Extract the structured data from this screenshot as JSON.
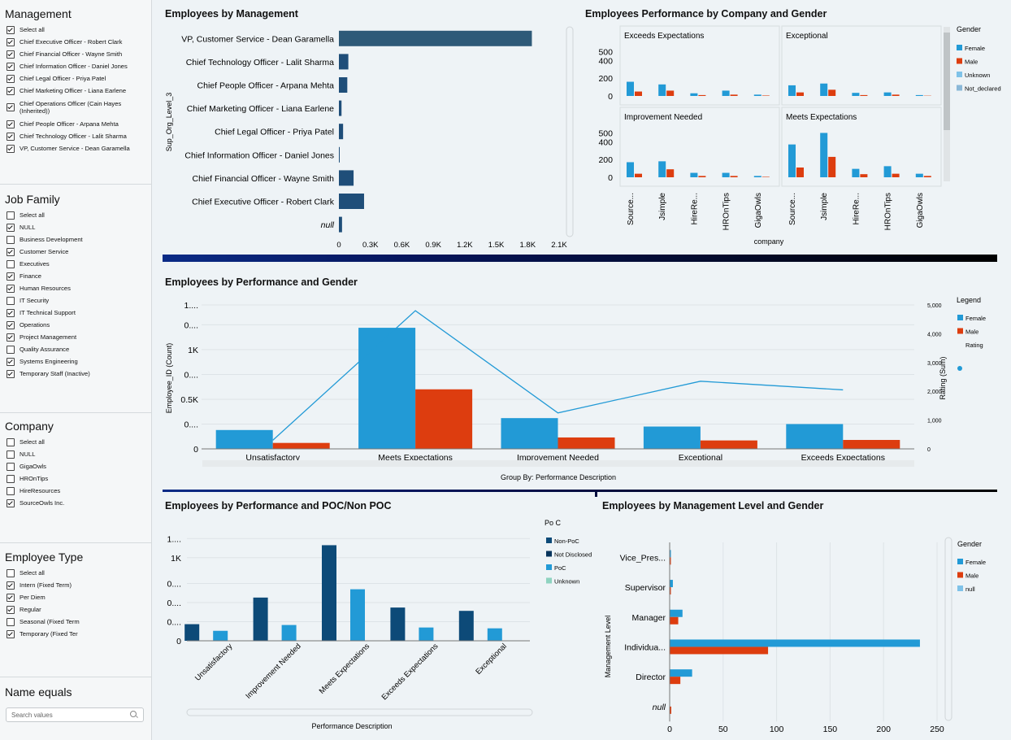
{
  "filters": {
    "management": {
      "title": "Management",
      "items": [
        {
          "label": "Select all",
          "checked": true
        },
        {
          "label": "Chief Executive Officer - Robert Clark",
          "checked": true
        },
        {
          "label": "Chief Financial Officer - Wayne Smith",
          "checked": true
        },
        {
          "label": "Chief Information Officer - Daniel Jones",
          "checked": true
        },
        {
          "label": "Chief Legal Officer - Priya Patel",
          "checked": true
        },
        {
          "label": "Chief Marketing Officer - Liana Earlene",
          "checked": true
        },
        {
          "label": "Chief Operations Officer (Cain Hayes (Inherited))",
          "checked": true
        },
        {
          "label": "Chief People Officer - Arpana Mehta",
          "checked": true
        },
        {
          "label": "Chief Technology Officer - Lalit Sharma",
          "checked": true
        },
        {
          "label": "VP, Customer Service - Dean Garamella",
          "checked": true
        }
      ]
    },
    "job_family": {
      "title": "Job Family",
      "items": [
        {
          "label": "Select all",
          "checked": false
        },
        {
          "label": "NULL",
          "checked": true
        },
        {
          "label": "Business Development",
          "checked": false
        },
        {
          "label": "Customer Service",
          "checked": true
        },
        {
          "label": "Executives",
          "checked": false
        },
        {
          "label": "Finance",
          "checked": true
        },
        {
          "label": "Human Resources",
          "checked": true
        },
        {
          "label": "IT Security",
          "checked": false
        },
        {
          "label": "IT Technical Support",
          "checked": true
        },
        {
          "label": "Operations",
          "checked": true
        },
        {
          "label": "Project Management",
          "checked": true
        },
        {
          "label": "Quality Assurance",
          "checked": false
        },
        {
          "label": "Systems Engineering",
          "checked": true
        },
        {
          "label": "Temporary Staff (Inactive)",
          "checked": true
        }
      ]
    },
    "company": {
      "title": "Company",
      "items": [
        {
          "label": "Select all",
          "checked": false
        },
        {
          "label": "NULL",
          "checked": false
        },
        {
          "label": "GigaOwls",
          "checked": false
        },
        {
          "label": "HROnTips",
          "checked": false
        },
        {
          "label": "HireResources",
          "checked": false
        },
        {
          "label": "SourceOwls Inc.",
          "checked": true
        }
      ]
    },
    "employee_type": {
      "title": "Employee Type",
      "items": [
        {
          "label": "Select all",
          "checked": false
        },
        {
          "label": "Intern (Fixed Term)",
          "checked": true
        },
        {
          "label": "Per Diem",
          "checked": true
        },
        {
          "label": "Regular",
          "checked": true
        },
        {
          "label": "Seasonal (Fixed Term",
          "checked": false
        },
        {
          "label": "Temporary (Fixed Ter",
          "checked": true
        }
      ]
    },
    "name": {
      "title": "Name equals",
      "placeholder": "Search values"
    }
  },
  "chart_data": [
    {
      "id": "management",
      "type": "bar",
      "orientation": "horizontal",
      "title": "Employees by Management",
      "ylabel": "Sup_Org_Level_3",
      "categories": [
        "VP, Customer Service - Dean Garamella",
        "Chief Technology Officer - Lalit Sharma",
        "Chief People Officer - Arpana Mehta",
        "Chief Marketing Officer - Liana Earlene",
        "Chief Legal Officer - Priya Patel",
        "Chief Information Officer - Daniel Jones",
        "Chief Financial Officer - Wayne Smith",
        "Chief Executive Officer - Robert Clark",
        "null"
      ],
      "values": [
        1840,
        90,
        80,
        25,
        40,
        5,
        140,
        240,
        30
      ],
      "ticks": [
        "0",
        "0.3K",
        "0.6K",
        "0.9K",
        "1.2K",
        "1.5K",
        "1.8K",
        "2.1K"
      ],
      "xlim": [
        0,
        2100
      ],
      "color": "#1f4e79",
      "highlight_color": "#2e5a78"
    },
    {
      "id": "perf_company",
      "type": "bar",
      "title": "Employees Performance by Company and Gender",
      "xlabel": "company",
      "categories": [
        "Source...",
        "Jsimple",
        "HireRe...",
        "HROnTips",
        "GigaOwls"
      ],
      "yticks": [
        "0",
        "200",
        "400",
        "500"
      ],
      "ylim": [
        0,
        550
      ],
      "legend_title": "Gender",
      "legend": [
        {
          "name": "Female",
          "color": "#229ad6"
        },
        {
          "name": "Male",
          "color": "#dd3d0f"
        },
        {
          "name": "Unknown",
          "color": "#7fc2e8"
        },
        {
          "name": "Not_declared",
          "color": "#8ab8d8"
        }
      ],
      "panels": [
        {
          "name": "Exceeds Expectations",
          "series": [
            [
              160,
              130,
              30,
              60,
              15
            ],
            [
              50,
              60,
              10,
              15,
              5
            ]
          ]
        },
        {
          "name": "Exceptional",
          "series": [
            [
              120,
              140,
              35,
              40,
              10
            ],
            [
              40,
              70,
              10,
              15,
              3
            ]
          ]
        },
        {
          "name": "Improvement Needed",
          "series": [
            [
              170,
              180,
              50,
              50,
              15
            ],
            [
              40,
              90,
              15,
              15,
              5
            ]
          ]
        },
        {
          "name": "Meets Expectations",
          "series": [
            [
              370,
              500,
              95,
              125,
              40
            ],
            [
              110,
              230,
              35,
              40,
              15
            ]
          ]
        }
      ]
    },
    {
      "id": "perf_gender",
      "type": "bar",
      "title": "Employees by Performance and Gender",
      "xlabel": "Group By: Performance Description",
      "ylabel": "Employee_ID (Count)",
      "y2label": "Rating (Sum)",
      "categories": [
        "Unsatisfactory",
        "Meets Expectations",
        "Improvement Needed",
        "Exceptional",
        "Exceeds Expectations"
      ],
      "series": [
        {
          "name": "Female",
          "values": [
            190,
            1220,
            310,
            225,
            250
          ],
          "color": "#229ad6"
        },
        {
          "name": "Male",
          "values": [
            60,
            600,
            115,
            85,
            90
          ],
          "color": "#dd3d0f"
        }
      ],
      "line": {
        "name": "Rating",
        "values": [
          300,
          4800,
          1250,
          2350,
          2050
        ],
        "color": "#229ad6"
      },
      "ylim": [
        0,
        1450
      ],
      "y2lim": [
        0,
        5000
      ],
      "yticks": [
        {
          "v": 0,
          "t": "0"
        },
        {
          "v": 250,
          "t": "0...."
        },
        {
          "v": 500,
          "t": "0.5K"
        },
        {
          "v": 750,
          "t": "0...."
        },
        {
          "v": 1000,
          "t": "1K"
        },
        {
          "v": 1250,
          "t": "0...."
        },
        {
          "v": 1450,
          "t": "1...."
        }
      ],
      "y2ticks": [
        "0",
        "1,000",
        "2,000",
        "3,000",
        "4,000",
        "5,000"
      ],
      "legend_title": "Legend",
      "legend": [
        {
          "name": "Female",
          "color": "#229ad6",
          "shape": "square"
        },
        {
          "name": "Male",
          "color": "#dd3d0f",
          "shape": "square"
        },
        {
          "name": "Rating",
          "color": "#229ad6",
          "shape": "circle"
        }
      ]
    },
    {
      "id": "perf_poc",
      "type": "bar",
      "title": "Employees by Performance and POC/Non POC",
      "xlabel": "Performance Description",
      "categories": [
        "Unsatisfactory",
        "Improvement Needed",
        "Meets Expectations",
        "Exceeds Expectations",
        "Exceptional"
      ],
      "series": [
        {
          "name": "Non-PoC",
          "values": [
            200,
            520,
            1150,
            400,
            360
          ],
          "color": "#0d4a78"
        },
        {
          "name": "Not Disclosed",
          "values": [
            0,
            0,
            0,
            0,
            0
          ],
          "color": "#07345c"
        },
        {
          "name": "PoC",
          "values": [
            120,
            190,
            620,
            160,
            150
          ],
          "color": "#229ad6"
        },
        {
          "name": "Unknown",
          "values": [
            0,
            0,
            0,
            0,
            0
          ],
          "color": "#8fd3c0"
        }
      ],
      "ylim": [
        0,
        1350
      ],
      "yticks": [
        {
          "v": 0,
          "t": "0"
        },
        {
          "v": 230,
          "t": "0...."
        },
        {
          "v": 460,
          "t": "0...."
        },
        {
          "v": 690,
          "t": "0...."
        },
        {
          "v": 1000,
          "t": "1K"
        },
        {
          "v": 1230,
          "t": "1...."
        }
      ],
      "legend_title": "Po C"
    },
    {
      "id": "mgmt_level",
      "type": "bar",
      "orientation": "horizontal",
      "title": "Employees by Management Level and Gender",
      "ylabel": "Management Level",
      "categories": [
        "Vice_Pres...",
        "Supervisor",
        "Manager",
        "Individua...",
        "Director",
        "null"
      ],
      "series": [
        {
          "name": "Female",
          "values": [
            1,
            3,
            12,
            234,
            21,
            0
          ],
          "color": "#229ad6"
        },
        {
          "name": "Male",
          "values": [
            0.5,
            1,
            8,
            92,
            10,
            1.5
          ],
          "color": "#dd3d0f"
        }
      ],
      "xlim": [
        0,
        250
      ],
      "xticks": [
        "0",
        "50",
        "100",
        "150",
        "200",
        "250"
      ],
      "legend_title": "Gender",
      "legend": [
        {
          "name": "Female",
          "color": "#229ad6"
        },
        {
          "name": "Male",
          "color": "#dd3d0f"
        },
        {
          "name": "null",
          "color": "#7fc2e8"
        }
      ]
    }
  ]
}
